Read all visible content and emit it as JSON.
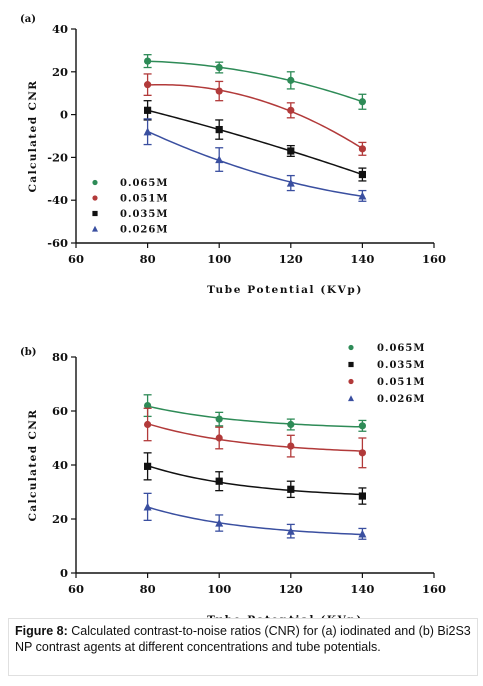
{
  "caption": {
    "label": "Figure 8:",
    "text": "Calculated contrast-to-noise ratios (CNR) for (a) iodinated and (b) Bi2S3 NP contrast agents at different concentrations and tube potentials."
  },
  "chart_data": [
    {
      "panel": "(a)",
      "type": "scatter",
      "xlabel": "Tube Potential (KVp)",
      "ylabel": "Calculated CNR",
      "xlim": [
        60,
        160
      ],
      "ylim": [
        -60,
        40
      ],
      "xticks": [
        60,
        80,
        100,
        120,
        140,
        160
      ],
      "yticks": [
        -60,
        -40,
        -20,
        0,
        20,
        40
      ],
      "legend_position": "left",
      "series": [
        {
          "name": "0.065M",
          "color": "#2e8b57",
          "marker": "circle",
          "x": [
            80,
            100,
            120,
            140
          ],
          "y": [
            25,
            22,
            16,
            6
          ],
          "err": [
            3,
            2.5,
            4,
            3.5
          ]
        },
        {
          "name": "0.051M",
          "color": "#b23a3a",
          "marker": "circle",
          "x": [
            80,
            100,
            120,
            140
          ],
          "y": [
            14,
            11,
            2,
            -16
          ],
          "err": [
            5,
            4.5,
            3.5,
            3
          ]
        },
        {
          "name": "0.035M",
          "color": "#111111",
          "marker": "square",
          "x": [
            80,
            100,
            120,
            140
          ],
          "y": [
            2,
            -7,
            -17,
            -28
          ],
          "err": [
            4.5,
            4.5,
            2.5,
            3
          ]
        },
        {
          "name": "0.026M",
          "color": "#3a4fa0",
          "marker": "triangle",
          "x": [
            80,
            100,
            120,
            140
          ],
          "y": [
            -8,
            -21,
            -32,
            -38
          ],
          "err": [
            6,
            5.5,
            3.5,
            2.5
          ]
        }
      ]
    },
    {
      "panel": "(b)",
      "type": "scatter",
      "xlabel": "Tube Potential (KVp)",
      "ylabel": "Calculated CNR",
      "xlim": [
        60,
        160
      ],
      "ylim": [
        0,
        80
      ],
      "xticks": [
        60,
        80,
        100,
        120,
        140,
        160
      ],
      "yticks": [
        0,
        20,
        40,
        60,
        80
      ],
      "legend_position": "top-right",
      "series": [
        {
          "name": "0.065M",
          "color": "#2e8b57",
          "marker": "circle",
          "x": [
            80,
            100,
            120,
            140
          ],
          "y": [
            62,
            57,
            55,
            54.5
          ],
          "err": [
            4,
            2.5,
            2,
            2
          ]
        },
        {
          "name": "0.035M",
          "color": "#111111",
          "marker": "square",
          "x": [
            80,
            100,
            120,
            140
          ],
          "y": [
            39.5,
            34,
            31,
            28.5
          ],
          "err": [
            5,
            3.5,
            3,
            3
          ]
        },
        {
          "name": "0.051M",
          "color": "#b23a3a",
          "marker": "circle",
          "x": [
            80,
            100,
            120,
            140
          ],
          "y": [
            55,
            50,
            47,
            44.5
          ],
          "err": [
            6,
            4,
            4,
            5.5
          ]
        },
        {
          "name": "0.026M",
          "color": "#3a4fa0",
          "marker": "triangle",
          "x": [
            80,
            100,
            120,
            140
          ],
          "y": [
            24.5,
            18.5,
            15.5,
            14.5
          ],
          "err": [
            5,
            3,
            2.5,
            2
          ]
        }
      ]
    }
  ]
}
